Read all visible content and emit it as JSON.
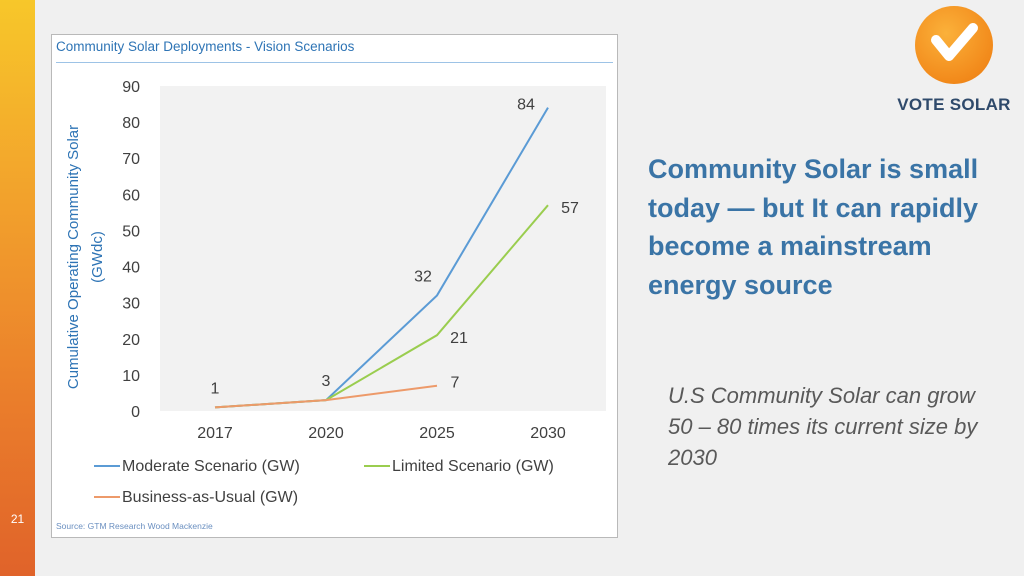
{
  "slide": {
    "number": "21"
  },
  "logo": {
    "text": "VOTE SOLAR",
    "icon": "check-icon"
  },
  "headline": "Community Solar is small today — but It can rapidly become a mainstream energy source",
  "subtext": "U.S Community Solar can grow 50 – 80 times its current size by 2030",
  "chart_data": {
    "type": "line",
    "title": "Community Solar Deployments - Vision Scenarios",
    "xlabel": "",
    "ylabel": "Cumulative Operating Community Solar (GWdc)",
    "categories": [
      "2017",
      "2020",
      "2025",
      "2030"
    ],
    "yticks": [
      0,
      10,
      20,
      30,
      40,
      50,
      60,
      70,
      80,
      90
    ],
    "ylim": [
      0,
      90
    ],
    "series": [
      {
        "name": "Moderate Scenario (GW)",
        "color": "#5b9bd5",
        "values": [
          1,
          3,
          32,
          84
        ]
      },
      {
        "name": "Limited Scenario (GW)",
        "color": "#9acd4f",
        "values": [
          1,
          3,
          21,
          57
        ]
      },
      {
        "name": "Business-as-Usual (GW)",
        "color": "#ed9a6a",
        "values": [
          1,
          3,
          7,
          null
        ]
      }
    ],
    "data_labels": [
      {
        "text": "1",
        "category": "2017"
      },
      {
        "text": "3",
        "category": "2020"
      },
      {
        "text": "32",
        "category": "2025"
      },
      {
        "text": "21",
        "category": "2025"
      },
      {
        "text": "7",
        "category": "2025"
      },
      {
        "text": "84",
        "category": "2030"
      },
      {
        "text": "57",
        "category": "2030"
      }
    ],
    "source": "Source: GTM Research Wood Mackenzie"
  }
}
